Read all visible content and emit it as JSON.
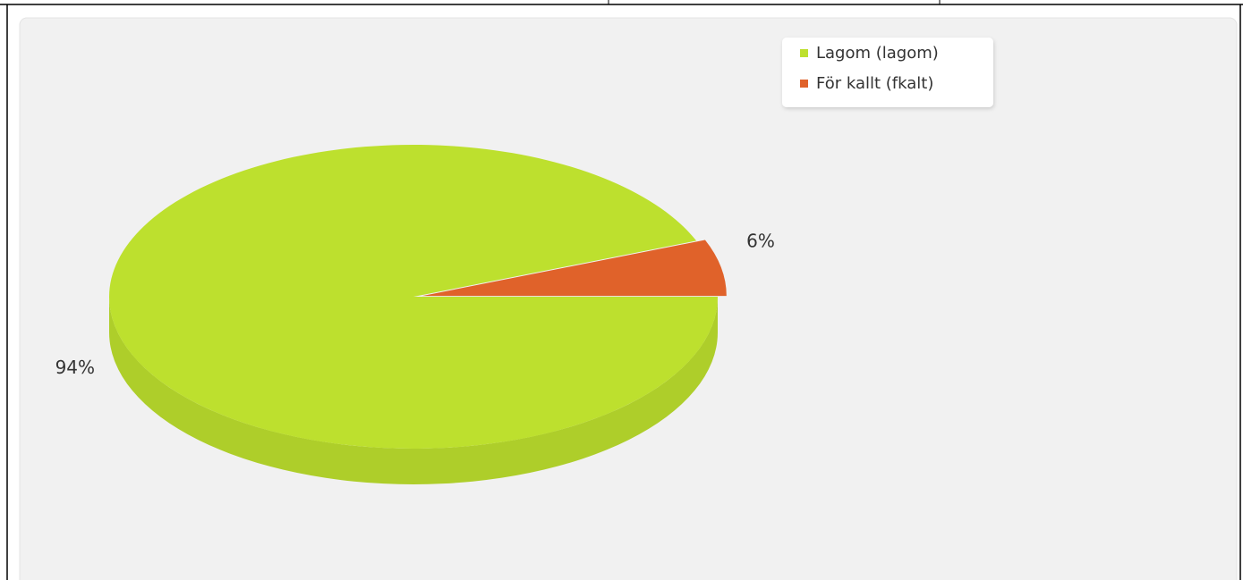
{
  "chart_data": {
    "type": "pie",
    "categories": [
      "Lagom (lagom)",
      "För kallt (fkalt)"
    ],
    "values": [
      94,
      6
    ],
    "value_labels": [
      "94%",
      "6%"
    ],
    "colors": [
      "#bde02e",
      "#e0622a"
    ],
    "legend": "top-right"
  }
}
